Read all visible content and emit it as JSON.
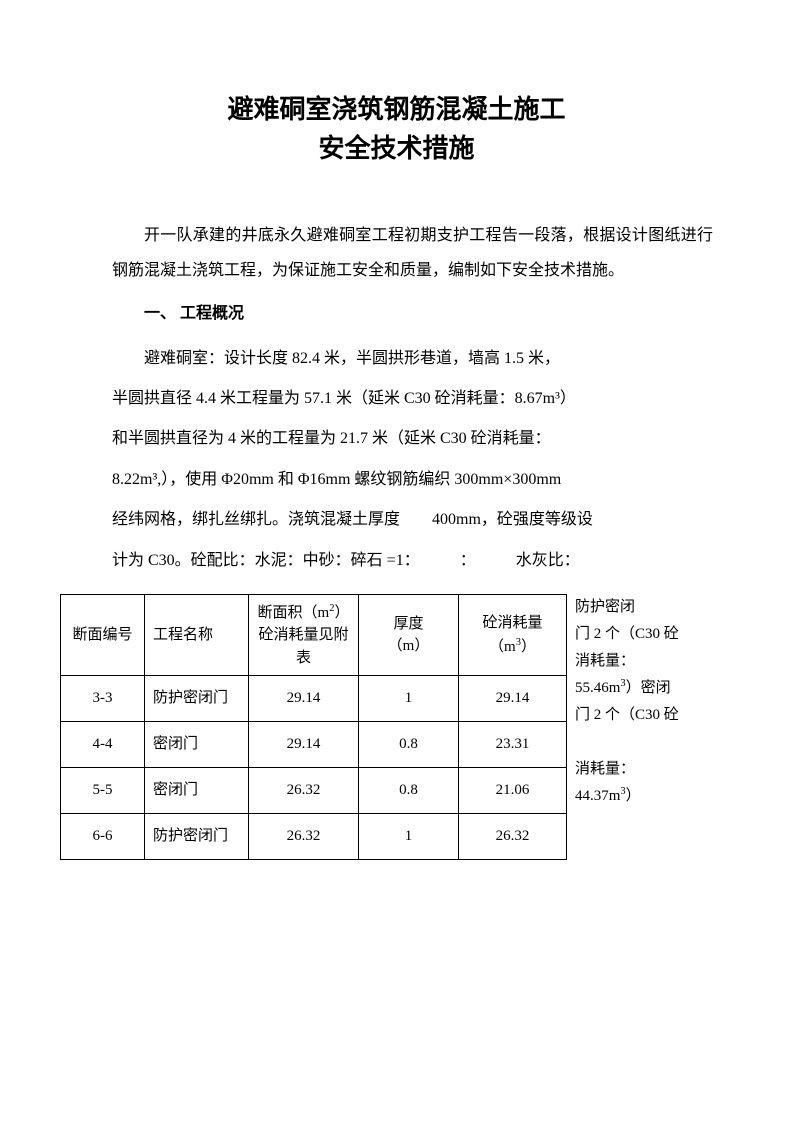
{
  "title_line1": "避难硐室浇筑钢筋混凝土施工",
  "title_line2": "安全技术措施",
  "intro": "开一队承建的井底永久避难硐室工程初期支护工程告一段落，根据设计图纸进行钢筋混凝土浇筑工程，为保证施工安全和质量，编制如下安全技术措施。",
  "section1_heading": "一、 工程概况",
  "body_lines": [
    "　　避难硐室：设计长度 82.4 米，半圆拱形巷道，墙高 1.5 米，",
    "半圆拱直径 4.4 米工程量为 57.1 米（延米 C30 砼消耗量：8.67m³）",
    "和半圆拱直径为 4 米的工程量为 21.7 米（延米 C30 砼消耗量：",
    "8.22m³,），使用 Φ20mm 和 Φ16mm 螺纹钢筋编织 300mm×300mm",
    "经纬网格，绑扎丝绑扎。浇筑混凝土厚度　　400mm，砼强度等级设",
    "计为 C30。砼配比：水泥：中砂：碎石 =1：　　　：　　　水灰比："
  ],
  "table": {
    "headers": [
      "断面编号",
      "工程名称",
      "断面积（m²）\n砼消耗量见附表",
      "厚度\n（m）",
      "砼消耗量\n（m³）"
    ],
    "rows": [
      [
        "3-3",
        "防护密闭门",
        "29.14",
        "1",
        "29.14"
      ],
      [
        "4-4",
        "密闭门",
        "29.14",
        "0.8",
        "23.31"
      ],
      [
        "5-5",
        "密闭门",
        "26.32",
        "0.8",
        "21.06"
      ],
      [
        "6-6",
        "防护密闭门",
        "26.32",
        "1",
        "26.32"
      ]
    ]
  },
  "side_note_lines": [
    "防护密闭",
    "门 2 个（C30 砼",
    "消耗量：",
    "55.46m³）密闭",
    "门 2 个（C30 砼",
    "",
    "消耗量：",
    "44.37m³）"
  ]
}
